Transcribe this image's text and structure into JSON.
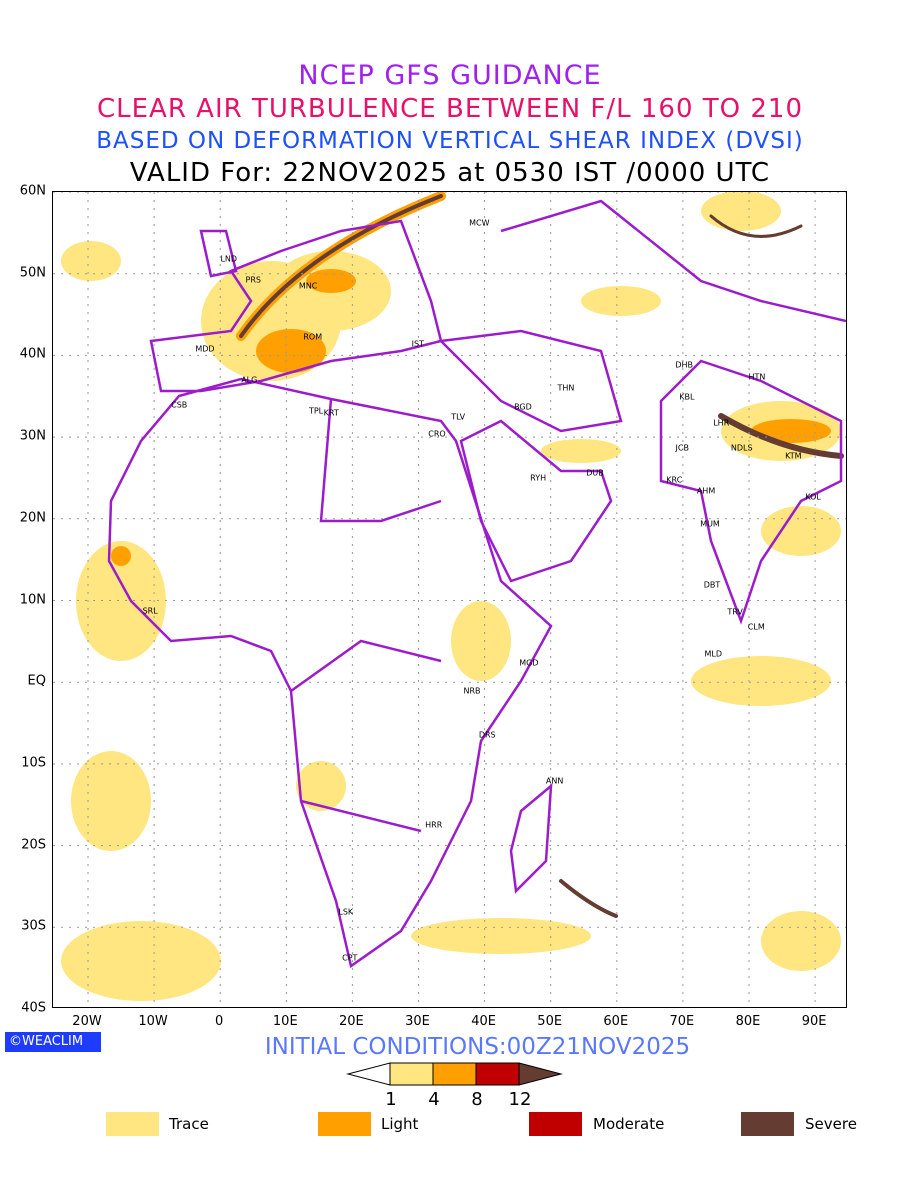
{
  "titles": {
    "line1": "NCEP GFS GUIDANCE",
    "line2": "CLEAR AIR TURBULENCE BETWEEN F/L 160 TO 210",
    "line3": "BASED ON DEFORMATION VERTICAL SHEAR INDEX (DVSI)",
    "line4": "VALID For: 22NOV2025 at 0530 IST /0000 UTC"
  },
  "axes": {
    "lat_labels": [
      {
        "t": "60N",
        "v": 60
      },
      {
        "t": "50N",
        "v": 50
      },
      {
        "t": "40N",
        "v": 40
      },
      {
        "t": "30N",
        "v": 30
      },
      {
        "t": "20N",
        "v": 20
      },
      {
        "t": "10N",
        "v": 10
      },
      {
        "t": "EQ",
        "v": 0
      },
      {
        "t": "10S",
        "v": -10
      },
      {
        "t": "20S",
        "v": -20
      },
      {
        "t": "30S",
        "v": -30
      },
      {
        "t": "40S",
        "v": -40
      }
    ],
    "lon_labels": [
      {
        "t": "20W",
        "v": -20
      },
      {
        "t": "10W",
        "v": -10
      },
      {
        "t": "0",
        "v": 0
      },
      {
        "t": "10E",
        "v": 10
      },
      {
        "t": "20E",
        "v": 20
      },
      {
        "t": "30E",
        "v": 30
      },
      {
        "t": "40E",
        "v": 40
      },
      {
        "t": "50E",
        "v": 50
      },
      {
        "t": "60E",
        "v": 60
      },
      {
        "t": "70E",
        "v": 70
      },
      {
        "t": "80E",
        "v": 80
      },
      {
        "t": "90E",
        "v": 90
      }
    ]
  },
  "cities": [
    {
      "n": "LND",
      "lon": 1.3,
      "lat": 51.8
    },
    {
      "n": "PRS",
      "lon": 5,
      "lat": 49.2
    },
    {
      "n": "MNC",
      "lon": 13.3,
      "lat": 48.5
    },
    {
      "n": "MCW",
      "lon": 39.2,
      "lat": 56.2
    },
    {
      "n": "MDD",
      "lon": -2.3,
      "lat": 40.8
    },
    {
      "n": "ROM",
      "lon": 14,
      "lat": 42.3
    },
    {
      "n": "IST",
      "lon": 29.9,
      "lat": 41.4
    },
    {
      "n": "ALG",
      "lon": 4.4,
      "lat": 37
    },
    {
      "n": "CSB",
      "lon": -6.2,
      "lat": 33.9
    },
    {
      "n": "TPL",
      "lon": 14.5,
      "lat": 33.2
    },
    {
      "n": "KRT",
      "lon": 16.8,
      "lat": 33
    },
    {
      "n": "TLV",
      "lon": 36,
      "lat": 32.5
    },
    {
      "n": "CRO",
      "lon": 32.8,
      "lat": 30.4
    },
    {
      "n": "BGD",
      "lon": 45.8,
      "lat": 33.7
    },
    {
      "n": "THN",
      "lon": 52.3,
      "lat": 36
    },
    {
      "n": "RYH",
      "lon": 48.1,
      "lat": 25
    },
    {
      "n": "DUB",
      "lon": 56.7,
      "lat": 25.6
    },
    {
      "n": "DHB",
      "lon": 70.2,
      "lat": 38.8
    },
    {
      "n": "HTN",
      "lon": 81.2,
      "lat": 37.4
    },
    {
      "n": "KBL",
      "lon": 70.6,
      "lat": 34.9
    },
    {
      "n": "LHR",
      "lon": 75.8,
      "lat": 31.7
    },
    {
      "n": "JCB",
      "lon": 69.9,
      "lat": 28.7
    },
    {
      "n": "NDLS",
      "lon": 78.9,
      "lat": 28.7
    },
    {
      "n": "KTM",
      "lon": 86.7,
      "lat": 27.7
    },
    {
      "n": "KRC",
      "lon": 68.7,
      "lat": 24.7
    },
    {
      "n": "AHM",
      "lon": 73.5,
      "lat": 23.4
    },
    {
      "n": "KOL",
      "lon": 89.7,
      "lat": 22.7
    },
    {
      "n": "MUM",
      "lon": 74.1,
      "lat": 19.4
    },
    {
      "n": "DBT",
      "lon": 74.4,
      "lat": 11.9
    },
    {
      "n": "TRV",
      "lon": 77.9,
      "lat": 8.6
    },
    {
      "n": "CLM",
      "lon": 81.1,
      "lat": 6.8
    },
    {
      "n": "MLD",
      "lon": 74.6,
      "lat": 3.5
    },
    {
      "n": "SRL",
      "lon": -10.6,
      "lat": 8.7
    },
    {
      "n": "MGD",
      "lon": 46.7,
      "lat": 2.3
    },
    {
      "n": "NRB",
      "lon": 38.1,
      "lat": -1.1
    },
    {
      "n": "DRS",
      "lon": 40.4,
      "lat": -6.5
    },
    {
      "n": "ANN",
      "lon": 50.6,
      "lat": -12.1
    },
    {
      "n": "HRR",
      "lon": 32.3,
      "lat": -17.5
    },
    {
      "n": "LSK",
      "lon": 19,
      "lat": -28.1
    },
    {
      "n": "CPT",
      "lon": 19.6,
      "lat": -33.8
    }
  ],
  "logo": "©WEACLIM",
  "initial_conditions": "INITIAL CONDITIONS:00Z21NOV2025",
  "colorbar": {
    "ticks": [
      "1",
      "4",
      "8",
      "12"
    ],
    "colors": [
      "#ffe680",
      "#ffa000",
      "#c00000",
      "#643c32"
    ]
  },
  "legend": [
    {
      "label": "Trace",
      "color": "#ffe680"
    },
    {
      "label": "Light",
      "color": "#ffa000"
    },
    {
      "label": "Moderate",
      "color": "#c00000"
    },
    {
      "label": "Severe",
      "color": "#643c32"
    }
  ],
  "colors": {
    "coast": "#9c1ccc"
  }
}
